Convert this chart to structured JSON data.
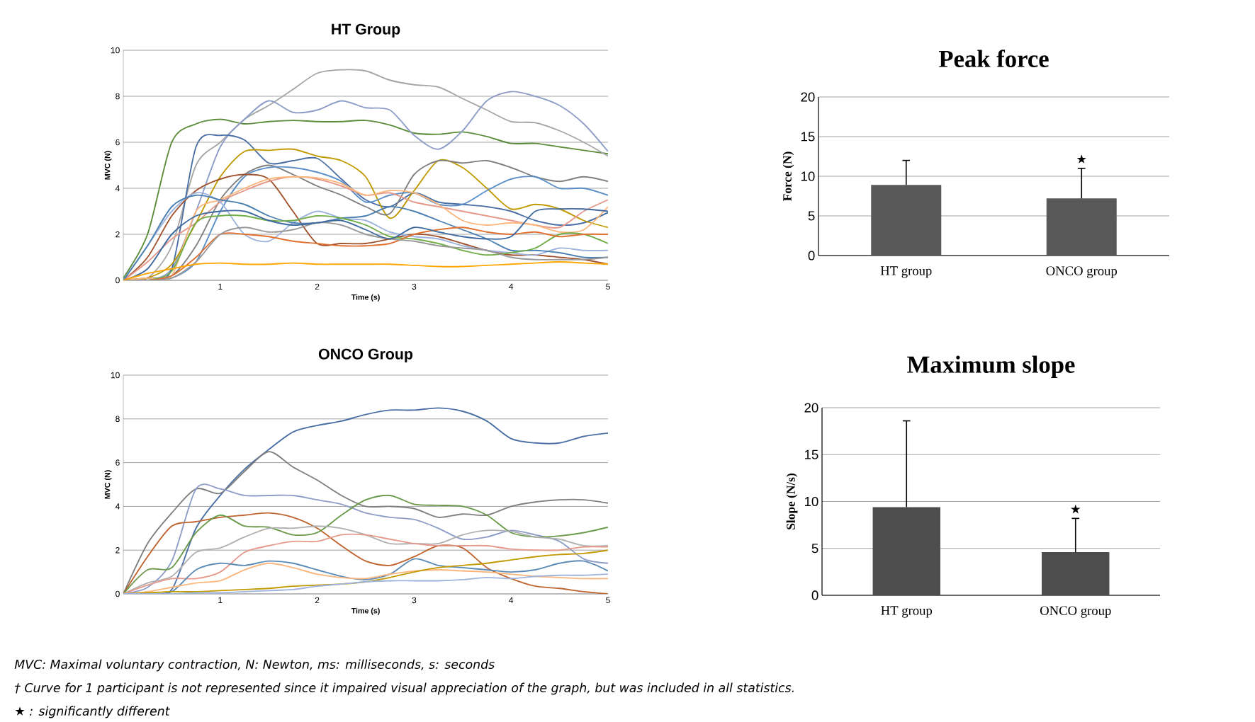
{
  "chart_data": [
    {
      "type": "line",
      "title": "HT Group",
      "xlabel": "Time (s)",
      "ylabel": "MVC (N)",
      "x": [
        0,
        0.25,
        0.5,
        0.75,
        1,
        1.25,
        1.5,
        1.75,
        2,
        2.25,
        2.5,
        2.75,
        3,
        3.25,
        3.5,
        3.75,
        4,
        4.25,
        4.5,
        4.75,
        5
      ],
      "xlim": [
        0,
        5
      ],
      "xticks": [
        1,
        2,
        3,
        4,
        5
      ],
      "ylim": [
        0,
        10
      ],
      "yticks": [
        0,
        2,
        4,
        6,
        8,
        10
      ],
      "grid": "y",
      "series": [
        {
          "color": "#5b8c3a",
          "values": [
            0.1,
            2.0,
            6.0,
            6.8,
            7.0,
            6.8,
            6.9,
            6.95,
            6.9,
            6.9,
            6.95,
            6.75,
            6.4,
            6.35,
            6.45,
            6.25,
            5.95,
            5.95,
            5.8,
            5.65,
            5.5
          ]
        },
        {
          "color": "#a6a6a6",
          "values": [
            0,
            0.1,
            1.5,
            5.0,
            6.0,
            7.0,
            7.6,
            8.3,
            9.0,
            9.15,
            9.1,
            8.7,
            8.5,
            8.4,
            7.9,
            7.4,
            6.9,
            6.85,
            6.5,
            6.0,
            5.4
          ]
        },
        {
          "color": "#8e9dc8",
          "values": [
            0,
            0,
            0.5,
            3.0,
            5.8,
            7.0,
            7.8,
            7.3,
            7.4,
            7.8,
            7.5,
            7.4,
            6.3,
            5.7,
            6.5,
            7.8,
            8.2,
            8.0,
            7.6,
            6.8,
            5.6
          ]
        },
        {
          "color": "#4a6fa5",
          "values": [
            0,
            0.1,
            0.5,
            5.8,
            6.3,
            6.1,
            5.1,
            5.2,
            5.3,
            4.4,
            3.5,
            3.2,
            3.8,
            3.4,
            3.3,
            3.2,
            3.0,
            2.6,
            2.4,
            2.5,
            2.95
          ]
        },
        {
          "color": "#c09a00",
          "values": [
            0,
            0.1,
            0.7,
            2.5,
            4.5,
            5.6,
            5.65,
            5.7,
            5.4,
            5.2,
            4.5,
            2.7,
            3.9,
            5.2,
            4.9,
            4.0,
            3.1,
            3.3,
            3.1,
            2.6,
            2.3
          ]
        },
        {
          "color": "#7f7f7f",
          "values": [
            0,
            0.1,
            0.2,
            1.5,
            3.5,
            4.6,
            5.0,
            4.6,
            4.1,
            3.7,
            3.2,
            2.9,
            4.6,
            5.2,
            5.1,
            5.2,
            4.9,
            4.5,
            4.3,
            4.5,
            4.3
          ]
        },
        {
          "color": "#5b8fc7",
          "values": [
            0,
            0,
            0.1,
            0.8,
            3.0,
            4.5,
            4.9,
            4.9,
            4.7,
            4.3,
            3.4,
            3.7,
            3.8,
            3.3,
            3.3,
            3.9,
            4.4,
            4.5,
            4.0,
            4.0,
            3.7
          ]
        },
        {
          "color": "#a0522d",
          "values": [
            0,
            1.0,
            2.8,
            3.9,
            4.4,
            4.6,
            4.4,
            3.0,
            1.6,
            1.6,
            1.6,
            1.8,
            2.0,
            1.9,
            1.6,
            1.3,
            1.1,
            1.1,
            1.0,
            0.9,
            0.7
          ]
        },
        {
          "color": "#e6998b",
          "values": [
            0,
            0.8,
            1.8,
            2.5,
            3.4,
            3.9,
            4.3,
            4.5,
            4.4,
            4.1,
            3.7,
            3.8,
            3.4,
            3.2,
            3.0,
            2.8,
            2.6,
            2.4,
            2.3,
            3.0,
            3.5
          ]
        },
        {
          "color": "#fbb67d",
          "values": [
            0,
            0.1,
            0.2,
            3.0,
            3.5,
            4.0,
            4.4,
            4.5,
            4.45,
            4.2,
            3.7,
            3.9,
            3.8,
            3.3,
            2.6,
            2.4,
            2.5,
            2.4,
            2.1,
            2.2,
            3.2
          ]
        },
        {
          "color": "#9fb4dc",
          "values": [
            0,
            1.5,
            3.0,
            3.8,
            3.4,
            2.0,
            1.7,
            2.5,
            3.0,
            2.7,
            2.6,
            2.1,
            1.9,
            1.8,
            1.5,
            1.3,
            1.2,
            1.1,
            1.4,
            1.3,
            1.3
          ]
        },
        {
          "color": "#4a7fb0",
          "values": [
            0,
            1.5,
            3.2,
            3.7,
            3.5,
            3.3,
            2.8,
            2.5,
            2.5,
            2.7,
            2.8,
            3.2,
            3.0,
            2.6,
            2.2,
            1.8,
            1.3,
            1.3,
            1.2,
            1.0,
            1.0
          ]
        },
        {
          "color": "#70ad47",
          "values": [
            0,
            0,
            0.4,
            2.5,
            2.8,
            2.8,
            2.6,
            2.6,
            2.8,
            2.7,
            2.4,
            1.9,
            1.8,
            1.6,
            1.3,
            1.1,
            1.2,
            1.4,
            2.0,
            2.0,
            1.6
          ]
        },
        {
          "color": "#e07030",
          "values": [
            0,
            0,
            0.2,
            1.0,
            2.0,
            2.0,
            1.9,
            1.7,
            1.6,
            1.5,
            1.5,
            1.6,
            2.0,
            2.2,
            2.3,
            2.1,
            2.0,
            2.1,
            1.9,
            2.0,
            2.0
          ]
        },
        {
          "color": "#999999",
          "values": [
            0,
            0,
            0.1,
            0.8,
            2.0,
            2.3,
            2.1,
            2.2,
            2.5,
            2.4,
            2.0,
            1.8,
            1.7,
            1.5,
            1.4,
            1.3,
            1.0,
            0.9,
            0.9,
            0.9,
            1.0
          ]
        },
        {
          "color": "#3f6aa0",
          "values": [
            0,
            0.5,
            2.0,
            2.8,
            3.0,
            3.0,
            2.6,
            2.4,
            2.5,
            2.6,
            2.2,
            1.8,
            2.3,
            2.1,
            1.9,
            1.8,
            1.9,
            3.0,
            3.1,
            3.1,
            3.0
          ]
        },
        {
          "color": "#ffa500",
          "values": [
            0,
            0.3,
            0.5,
            0.7,
            0.75,
            0.7,
            0.7,
            0.75,
            0.7,
            0.7,
            0.7,
            0.7,
            0.65,
            0.6,
            0.6,
            0.65,
            0.7,
            0.75,
            0.8,
            0.75,
            0.7
          ]
        }
      ]
    },
    {
      "type": "bar",
      "title": "Peak force",
      "ylabel": "Force (N)",
      "categories": [
        "HT group",
        "ONCO group"
      ],
      "values": [
        8.9,
        7.2
      ],
      "color": "#595959",
      "errors": [
        [
          8.9,
          12.0
        ],
        [
          7.2,
          11.0
        ]
      ],
      "ylim": [
        0,
        20
      ],
      "yticks": [
        0,
        5,
        10,
        15,
        20
      ],
      "grid": "y",
      "annotations": [
        "★"
      ]
    },
    {
      "type": "line",
      "title": "ONCO Group",
      "xlabel": "Time (s)",
      "ylabel": "MVC (N)",
      "x": [
        0,
        0.25,
        0.5,
        0.75,
        1,
        1.25,
        1.5,
        1.75,
        2,
        2.25,
        2.5,
        2.75,
        3,
        3.25,
        3.5,
        3.75,
        4,
        4.25,
        4.5,
        4.75,
        5
      ],
      "xlim": [
        0,
        5
      ],
      "xticks": [
        1,
        2,
        3,
        4,
        5
      ],
      "ylim": [
        0,
        10
      ],
      "yticks": [
        0,
        2,
        4,
        6,
        8,
        10
      ],
      "grid": "y",
      "series": [
        {
          "color": "#4a6fa5",
          "values": [
            0,
            0,
            0.2,
            3.0,
            4.5,
            5.7,
            6.6,
            7.4,
            7.7,
            7.9,
            8.2,
            8.4,
            8.4,
            8.5,
            8.35,
            7.9,
            7.1,
            6.9,
            6.9,
            7.2,
            7.35
          ]
        },
        {
          "color": "#7f7f7f",
          "values": [
            0,
            2.3,
            3.7,
            4.8,
            4.6,
            5.6,
            6.5,
            5.8,
            5.2,
            4.5,
            4.0,
            4.0,
            3.9,
            3.5,
            3.65,
            3.6,
            4.0,
            4.2,
            4.3,
            4.3,
            4.15
          ]
        },
        {
          "color": "#8e9dc8",
          "values": [
            0,
            0.3,
            1.5,
            4.8,
            4.8,
            4.5,
            4.5,
            4.5,
            4.3,
            4.1,
            3.7,
            3.5,
            3.4,
            3.0,
            2.5,
            2.6,
            2.9,
            2.7,
            2.4,
            1.6,
            1.4
          ]
        },
        {
          "color": "#c0642f",
          "values": [
            0,
            1.7,
            3.1,
            3.3,
            3.5,
            3.6,
            3.7,
            3.5,
            3.0,
            2.2,
            1.5,
            1.3,
            1.7,
            2.2,
            2.1,
            1.2,
            0.7,
            0.35,
            0.25,
            0.1,
            0
          ]
        },
        {
          "color": "#6a9a4a",
          "values": [
            0,
            1.1,
            1.2,
            2.8,
            3.6,
            3.1,
            3.05,
            2.7,
            2.8,
            3.6,
            4.3,
            4.5,
            4.1,
            4.05,
            4.0,
            3.6,
            2.8,
            2.6,
            2.65,
            2.8,
            3.05
          ]
        },
        {
          "color": "#b0b0b0",
          "values": [
            0,
            0.5,
            0.8,
            1.9,
            2.1,
            2.6,
            3.0,
            3.0,
            3.1,
            3.0,
            2.7,
            2.3,
            2.3,
            2.3,
            2.7,
            2.9,
            2.85,
            2.6,
            2.5,
            2.2,
            2.2
          ]
        },
        {
          "color": "#e6998b",
          "values": [
            0,
            0.4,
            0.7,
            0.7,
            1.0,
            1.9,
            2.2,
            2.4,
            2.4,
            2.7,
            2.7,
            2.5,
            2.3,
            2.2,
            2.2,
            2.2,
            2.05,
            2.0,
            2.0,
            2.15,
            2.15
          ]
        },
        {
          "color": "#5a8ab5",
          "values": [
            0,
            0,
            0.1,
            1.1,
            1.4,
            1.3,
            1.5,
            1.4,
            1.1,
            0.8,
            0.65,
            0.9,
            1.6,
            1.3,
            1.2,
            1.1,
            1.0,
            1.1,
            1.4,
            1.5,
            1.05
          ]
        },
        {
          "color": "#fbb67d",
          "values": [
            0,
            0.1,
            0.3,
            0.5,
            0.6,
            1.1,
            1.4,
            1.2,
            0.9,
            0.75,
            0.7,
            0.9,
            1.05,
            1.1,
            1.05,
            1.0,
            0.9,
            0.8,
            0.75,
            0.7,
            0.7
          ]
        },
        {
          "color": "#c09a00",
          "values": [
            0,
            0.05,
            0.1,
            0.1,
            0.15,
            0.2,
            0.25,
            0.35,
            0.4,
            0.45,
            0.55,
            0.75,
            1.0,
            1.2,
            1.3,
            1.4,
            1.55,
            1.7,
            1.8,
            1.85,
            2.0
          ]
        },
        {
          "color": "#9fb4dc",
          "values": [
            0,
            0,
            0,
            0.05,
            0.05,
            0.1,
            0.15,
            0.2,
            0.35,
            0.45,
            0.55,
            0.6,
            0.6,
            0.6,
            0.65,
            0.75,
            0.7,
            0.8,
            0.85,
            0.85,
            0.9
          ]
        }
      ]
    },
    {
      "type": "bar",
      "title": "Maximum slope",
      "ylabel": "Slope (N/s)",
      "categories": [
        "HT group",
        "ONCO group"
      ],
      "values": [
        9.4,
        4.6
      ],
      "color": "#4d4d4d",
      "errors": [
        [
          9.4,
          18.6
        ],
        [
          4.6,
          8.2
        ]
      ],
      "ylim": [
        0,
        20
      ],
      "yticks": [
        0,
        5,
        10,
        15,
        20
      ],
      "grid": "y",
      "annotations": [
        "★"
      ]
    },
    {
      "type": "other",
      "annotations": [
        "MVC: Maximal voluntary contraction, N: Newton, ms: milliseconds, s: seconds",
        "† Curve for 1 participant is not represented since it impaired visual appreciation of the graph, but was included in all statistics.",
        "★ : significantly different"
      ]
    }
  ]
}
